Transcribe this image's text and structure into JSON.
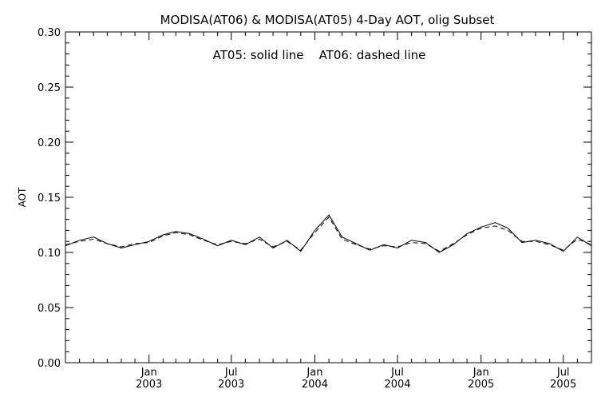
{
  "chart_data": {
    "type": "line",
    "title": "MODISA(AT06) & MODISA(AT05) 4-Day AOT, olig Subset",
    "annotation": "AT05: solid line    AT06: dashed line",
    "ylabel": "AOT",
    "xlabel": "",
    "ylim": [
      0.0,
      0.3
    ],
    "xlim": [
      "2002-07-01",
      "2005-09-01"
    ],
    "yticks": [
      {
        "value": 0.0,
        "label": "0.00"
      },
      {
        "value": 0.05,
        "label": "0.05"
      },
      {
        "value": 0.1,
        "label": "0.10"
      },
      {
        "value": 0.15,
        "label": "0.15"
      },
      {
        "value": 0.2,
        "label": "0.20"
      },
      {
        "value": 0.25,
        "label": "0.25"
      },
      {
        "value": 0.3,
        "label": "0.30"
      }
    ],
    "xticks": [
      {
        "date": "2003-01-01",
        "month": "Jan",
        "year": "2003"
      },
      {
        "date": "2003-07-01",
        "month": "Jul",
        "year": "2003"
      },
      {
        "date": "2004-01-01",
        "month": "Jan",
        "year": "2004"
      },
      {
        "date": "2004-07-01",
        "month": "Jul",
        "year": "2004"
      },
      {
        "date": "2005-01-01",
        "month": "Jan",
        "year": "2005"
      },
      {
        "date": "2005-07-01",
        "month": "Jul",
        "year": "2005"
      }
    ],
    "grid": false,
    "series": [
      {
        "name": "AT05",
        "style": "solid",
        "color": "#000000",
        "x": [
          "2002-07-01",
          "2002-08-01",
          "2002-09-01",
          "2002-10-01",
          "2002-11-01",
          "2002-12-01",
          "2003-01-01",
          "2003-02-01",
          "2003-03-01",
          "2003-04-01",
          "2003-05-01",
          "2003-06-01",
          "2003-07-01",
          "2003-08-01",
          "2003-09-01",
          "2003-10-01",
          "2003-11-01",
          "2003-12-01",
          "2004-01-01",
          "2004-02-01",
          "2004-03-01",
          "2004-04-01",
          "2004-05-01",
          "2004-06-01",
          "2004-07-01",
          "2004-08-01",
          "2004-09-01",
          "2004-10-01",
          "2004-11-01",
          "2004-12-01",
          "2005-01-01",
          "2005-02-01",
          "2005-03-01",
          "2005-04-01",
          "2005-05-01",
          "2005-06-01",
          "2005-07-01",
          "2005-08-01",
          "2005-09-01"
        ],
        "values": [
          0.106,
          0.111,
          0.114,
          0.108,
          0.104,
          0.107,
          0.11,
          0.116,
          0.119,
          0.117,
          0.112,
          0.106,
          0.111,
          0.107,
          0.114,
          0.104,
          0.111,
          0.101,
          0.12,
          0.134,
          0.114,
          0.108,
          0.102,
          0.107,
          0.104,
          0.111,
          0.109,
          0.1,
          0.107,
          0.117,
          0.123,
          0.127,
          0.122,
          0.109,
          0.111,
          0.108,
          0.101,
          0.114,
          0.106
        ]
      },
      {
        "name": "AT06",
        "style": "dashed",
        "color": "#000000",
        "x": [
          "2002-07-01",
          "2002-08-01",
          "2002-09-01",
          "2002-10-01",
          "2002-11-01",
          "2002-12-01",
          "2003-01-01",
          "2003-02-01",
          "2003-03-01",
          "2003-04-01",
          "2003-05-01",
          "2003-06-01",
          "2003-07-01",
          "2003-08-01",
          "2003-09-01",
          "2003-10-01",
          "2003-11-01",
          "2003-12-01",
          "2004-01-01",
          "2004-02-01",
          "2004-03-01",
          "2004-04-01",
          "2004-05-01",
          "2004-06-01",
          "2004-07-01",
          "2004-08-01",
          "2004-09-01",
          "2004-10-01",
          "2004-11-01",
          "2004-12-01",
          "2005-01-01",
          "2005-02-01",
          "2005-03-01",
          "2005-04-01",
          "2005-05-01",
          "2005-06-01",
          "2005-07-01",
          "2005-08-01",
          "2005-09-01"
        ],
        "values": [
          0.107,
          0.11,
          0.112,
          0.108,
          0.105,
          0.108,
          0.109,
          0.115,
          0.118,
          0.116,
          0.111,
          0.107,
          0.11,
          0.108,
          0.112,
          0.105,
          0.11,
          0.102,
          0.118,
          0.132,
          0.112,
          0.107,
          0.103,
          0.106,
          0.105,
          0.109,
          0.108,
          0.101,
          0.108,
          0.116,
          0.122,
          0.124,
          0.12,
          0.11,
          0.11,
          0.107,
          0.102,
          0.112,
          0.107
        ]
      }
    ]
  }
}
